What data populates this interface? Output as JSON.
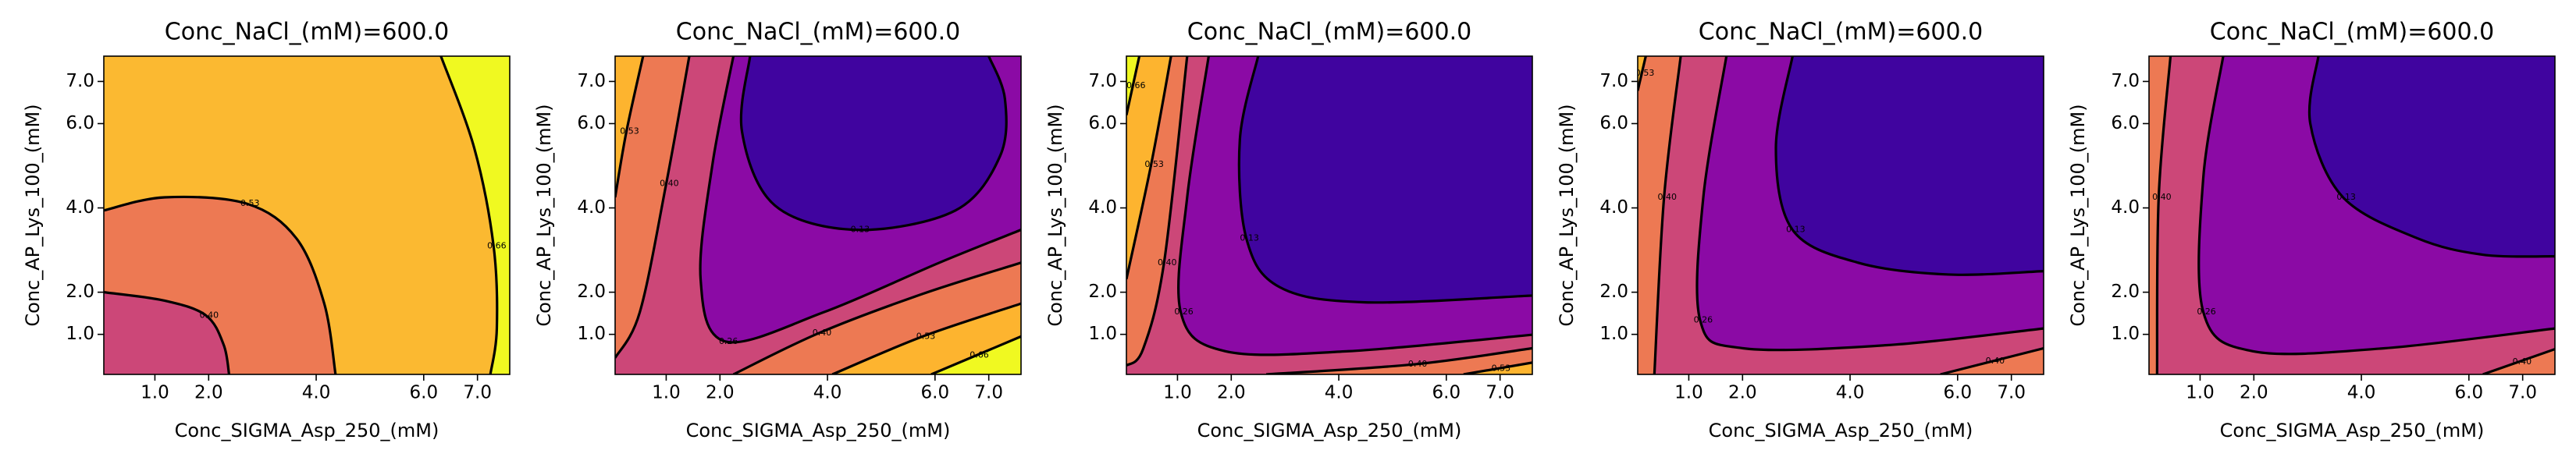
{
  "chart_data": [
    {
      "type": "contour",
      "title": "Conc_NaCl_(mM)=600.0",
      "xlabel": "Conc_SIGMA_Asp_250_(mM)",
      "ylabel": "Conc_AP_Lys_100_(mM)",
      "xlim": [
        0.05,
        7.6
      ],
      "ylim": [
        0.05,
        7.6
      ],
      "xticks": [
        {
          "value": 1,
          "label": "1.0"
        },
        {
          "value": 2,
          "label": "2.0"
        },
        {
          "value": 4,
          "label": "4.0"
        },
        {
          "value": 6,
          "label": "6.0"
        },
        {
          "value": 7,
          "label": "7.0"
        }
      ],
      "yticks": [
        {
          "value": 1,
          "label": "1.0"
        },
        {
          "value": 2,
          "label": "2.0"
        },
        {
          "value": 4,
          "label": "4.0"
        },
        {
          "value": 6,
          "label": "6.0"
        },
        {
          "value": 7,
          "label": "7.0"
        }
      ],
      "background": "#fbb931",
      "contours": [
        {
          "level": 0.53,
          "label": "0.53",
          "color": "#ed7953",
          "corners": [
            "bl"
          ],
          "x": [
            0.05,
            1.18,
            2.71,
            3.63,
            4.15,
            4.36
          ],
          "y": [
            3.94,
            4.25,
            4.1,
            3.28,
            1.73,
            0.05
          ]
        },
        {
          "level": 0.4,
          "label": "0.40",
          "color": "#cc4778",
          "corners": [
            "bl"
          ],
          "x": [
            0.05,
            1.18,
            1.95,
            2.28,
            2.38
          ],
          "y": [
            2.0,
            1.8,
            1.45,
            0.75,
            0.05
          ]
        },
        {
          "level": 0.66,
          "label": "0.66",
          "color": "#f0f921",
          "corners": [
            "br",
            "tr"
          ],
          "x": [
            6.32,
            6.94,
            7.3,
            7.36,
            7.24
          ],
          "y": [
            7.6,
            5.42,
            3.09,
            1.14,
            0.05
          ]
        }
      ]
    },
    {
      "type": "contour",
      "title": "Conc_NaCl_(mM)=600.0",
      "xlabel": "Conc_SIGMA_Asp_250_(mM)",
      "ylabel": "Conc_AP_Lys_100_(mM)",
      "xlim": [
        0.05,
        7.6
      ],
      "ylim": [
        0.05,
        7.6
      ],
      "xticks": [
        {
          "value": 1,
          "label": "1.0"
        },
        {
          "value": 2,
          "label": "2.0"
        },
        {
          "value": 4,
          "label": "4.0"
        },
        {
          "value": 6,
          "label": "6.0"
        },
        {
          "value": 7,
          "label": "7.0"
        }
      ],
      "yticks": [
        {
          "value": 1,
          "label": "1.0"
        },
        {
          "value": 2,
          "label": "2.0"
        },
        {
          "value": 4,
          "label": "4.0"
        },
        {
          "value": 6,
          "label": "6.0"
        },
        {
          "value": 7,
          "label": "7.0"
        }
      ],
      "background": "#cc4778",
      "contours": [
        {
          "level": 0.26,
          "label": "0.26",
          "color": "#8b0aa5",
          "corners": [
            "tr"
          ],
          "x": [
            2.25,
            1.86,
            1.64,
            2.1,
            3.94,
            6.08,
            7.6
          ],
          "y": [
            7.6,
            5.03,
            2.31,
            0.83,
            1.53,
            2.7,
            3.48
          ]
        },
        {
          "level": 0.13,
          "label": "0.13",
          "color": "#40049f",
          "corners": [],
          "x": [
            2.56,
            2.41,
            3.02,
            4.55,
            6.38,
            7.21,
            7.3,
            7.0
          ],
          "y": [
            7.6,
            5.81,
            4.06,
            3.48,
            3.94,
            5.23,
            6.59,
            7.6
          ]
        },
        {
          "level": 0.4,
          "label": "0.40",
          "color": "#ed7953",
          "corners": [
            "tl"
          ],
          "x": [
            1.43,
            1.0,
            0.51,
            0.05
          ],
          "y": [
            7.6,
            4.57,
            1.53,
            0.44
          ]
        },
        {
          "level": 0.4,
          "label": "0.40",
          "color": "#ed7953",
          "corners": [
            "br"
          ],
          "x": [
            2.25,
            3.84,
            5.77,
            7.6
          ],
          "y": [
            0.05,
            1.03,
            1.96,
            2.7
          ]
        },
        {
          "level": 0.53,
          "label": "0.53",
          "color": "#fdb42f",
          "corners": [
            "tl"
          ],
          "x": [
            0.57,
            0.26,
            0.05
          ],
          "y": [
            7.6,
            5.81,
            4.25
          ]
        },
        {
          "level": 0.53,
          "label": "0.53",
          "color": "#fdb42f",
          "corners": [
            "br"
          ],
          "x": [
            4.09,
            5.77,
            7.6
          ],
          "y": [
            0.05,
            0.95,
            1.73
          ]
        },
        {
          "level": 0.66,
          "label": "0.66",
          "color": "#f0f921",
          "corners": [
            "br"
          ],
          "x": [
            5.93,
            7.6
          ],
          "y": [
            0.05,
            0.95
          ]
        }
      ]
    },
    {
      "type": "contour",
      "title": "Conc_NaCl_(mM)=600.0",
      "xlabel": "Conc_SIGMA_Asp_250_(mM)",
      "ylabel": "Conc_AP_Lys_100_(mM)",
      "xlim": [
        0.05,
        7.6
      ],
      "ylim": [
        0.05,
        7.6
      ],
      "xticks": [
        {
          "value": 1,
          "label": "1.0"
        },
        {
          "value": 2,
          "label": "2.0"
        },
        {
          "value": 4,
          "label": "4.0"
        },
        {
          "value": 6,
          "label": "6.0"
        },
        {
          "value": 7,
          "label": "7.0"
        }
      ],
      "yticks": [
        {
          "value": 1,
          "label": "1.0"
        },
        {
          "value": 2,
          "label": "2.0"
        },
        {
          "value": 4,
          "label": "4.0"
        },
        {
          "value": 6,
          "label": "6.0"
        },
        {
          "value": 7,
          "label": "7.0"
        }
      ],
      "background": "#cc4778",
      "contours": [
        {
          "level": 0.4,
          "label": "0.40",
          "color": "#ed7953",
          "corners": [
            "tl"
          ],
          "x": [
            1.18,
            0.75,
            0.36,
            0.05
          ],
          "y": [
            7.6,
            2.7,
            0.65,
            0.26
          ]
        },
        {
          "level": 0.53,
          "label": "0.53",
          "color": "#fdb42f",
          "corners": [
            "tl"
          ],
          "x": [
            0.88,
            0.51,
            0.05
          ],
          "y": [
            7.6,
            5.03,
            2.31
          ]
        },
        {
          "level": 0.66,
          "label": "0.66",
          "color": "#f0f921",
          "corners": [
            "tl"
          ],
          "x": [
            0.29,
            0.05
          ],
          "y": [
            7.6,
            6.2
          ]
        },
        {
          "level": 0.26,
          "label": "0.26",
          "color": "#8b0aa5",
          "corners": [
            "tr"
          ],
          "x": [
            1.58,
            1.18,
            1.06,
            1.89,
            4.18,
            7.6
          ],
          "y": [
            7.6,
            4.25,
            1.53,
            0.6,
            0.6,
            0.99
          ]
        },
        {
          "level": 0.13,
          "label": "0.13",
          "color": "#40049f",
          "corners": [
            "tr"
          ],
          "x": [
            2.5,
            2.16,
            2.28,
            2.9,
            4.49,
            7.6
          ],
          "y": [
            7.6,
            5.62,
            3.28,
            2.12,
            1.76,
            1.92
          ]
        },
        {
          "level": 0.4,
          "label": "0.40",
          "color": "#ed7953",
          "corners": [
            "br"
          ],
          "x": [
            2.65,
            5.41,
            7.6
          ],
          "y": [
            0.05,
            0.29,
            0.67
          ]
        },
        {
          "level": 0.53,
          "label": "0.53",
          "color": "#fdb42f",
          "corners": [
            "br"
          ],
          "x": [
            6.32,
            7.6
          ],
          "y": [
            0.05,
            0.33
          ]
        }
      ]
    },
    {
      "type": "contour",
      "title": "Conc_NaCl_(mM)=600.0",
      "xlabel": "Conc_SIGMA_Asp_250_(mM)",
      "ylabel": "Conc_AP_Lys_100_(mM)",
      "xlim": [
        0.05,
        7.6
      ],
      "ylim": [
        0.05,
        7.6
      ],
      "xticks": [
        {
          "value": 1,
          "label": "1.0"
        },
        {
          "value": 2,
          "label": "2.0"
        },
        {
          "value": 4,
          "label": "4.0"
        },
        {
          "value": 6,
          "label": "6.0"
        },
        {
          "value": 7,
          "label": "7.0"
        }
      ],
      "yticks": [
        {
          "value": 1,
          "label": "1.0"
        },
        {
          "value": 2,
          "label": "2.0"
        },
        {
          "value": 4,
          "label": "4.0"
        },
        {
          "value": 6,
          "label": "6.0"
        },
        {
          "value": 7,
          "label": "7.0"
        }
      ],
      "background": "#cc4778",
      "contours": [
        {
          "level": 0.4,
          "label": "0.40",
          "color": "#ed7953",
          "corners": [
            "bl",
            "tl"
          ],
          "x": [
            0.85,
            0.54,
            0.36
          ],
          "y": [
            7.6,
            4.25,
            0.05
          ]
        },
        {
          "level": 0.53,
          "label": "0.53",
          "color": "#fdb42f",
          "corners": [
            "tl"
          ],
          "x": [
            0.2,
            0.05
          ],
          "y": [
            7.6,
            6.78
          ]
        },
        {
          "level": 0.26,
          "label": "0.26",
          "color": "#8b0aa5",
          "corners": [
            "tr"
          ],
          "x": [
            1.7,
            1.27,
            1.21,
            2.01,
            4.76,
            7.6
          ],
          "y": [
            7.6,
            4.25,
            1.34,
            0.67,
            0.75,
            1.14
          ]
        },
        {
          "level": 0.13,
          "label": "0.13",
          "color": "#40049f",
          "corners": [
            "tr"
          ],
          "x": [
            2.93,
            2.62,
            2.93,
            4.15,
            5.83,
            7.6
          ],
          "y": [
            7.6,
            5.42,
            3.48,
            2.7,
            2.42,
            2.5
          ]
        },
        {
          "level": 0.4,
          "label": "0.40",
          "color": "#ed7953",
          "corners": [
            "br"
          ],
          "x": [
            5.68,
            7.6
          ],
          "y": [
            0.05,
            0.67
          ]
        }
      ]
    },
    {
      "type": "contour",
      "title": "Conc_NaCl_(mM)=600.0",
      "xlabel": "Conc_SIGMA_Asp_250_(mM)",
      "ylabel": "Conc_AP_Lys_100_(mM)",
      "xlim": [
        0.05,
        7.6
      ],
      "ylim": [
        0.05,
        7.6
      ],
      "xticks": [
        {
          "value": 1,
          "label": "1.0"
        },
        {
          "value": 2,
          "label": "2.0"
        },
        {
          "value": 4,
          "label": "4.0"
        },
        {
          "value": 6,
          "label": "6.0"
        },
        {
          "value": 7,
          "label": "7.0"
        }
      ],
      "yticks": [
        {
          "value": 1,
          "label": "1.0"
        },
        {
          "value": 2,
          "label": "2.0"
        },
        {
          "value": 4,
          "label": "4.0"
        },
        {
          "value": 6,
          "label": "6.0"
        },
        {
          "value": 7,
          "label": "7.0"
        }
      ],
      "background": "#cc4778",
      "contours": [
        {
          "level": 0.4,
          "label": "0.40",
          "color": "#ed7953",
          "corners": [
            "bl",
            "tl"
          ],
          "x": [
            0.45,
            0.23,
            0.2
          ],
          "y": [
            7.6,
            4.25,
            0.05
          ]
        },
        {
          "level": 0.26,
          "label": "0.26",
          "color": "#8b0aa5",
          "corners": [
            "tr"
          ],
          "x": [
            1.43,
            1.06,
            1.06,
            1.98,
            4.43,
            7.6
          ],
          "y": [
            7.6,
            4.72,
            1.53,
            0.6,
            0.67,
            1.14
          ]
        },
        {
          "level": 0.13,
          "label": "0.13",
          "color": "#40049f",
          "corners": [
            "tr"
          ],
          "x": [
            3.2,
            3.05,
            3.66,
            5.04,
            6.26,
            7.6
          ],
          "y": [
            7.6,
            6.0,
            4.25,
            3.28,
            2.89,
            2.85
          ]
        },
        {
          "level": 0.4,
          "label": "0.40",
          "color": "#ed7953",
          "corners": [
            "br"
          ],
          "x": [
            6.26,
            7.6
          ],
          "y": [
            0.05,
            0.65
          ]
        }
      ]
    }
  ]
}
